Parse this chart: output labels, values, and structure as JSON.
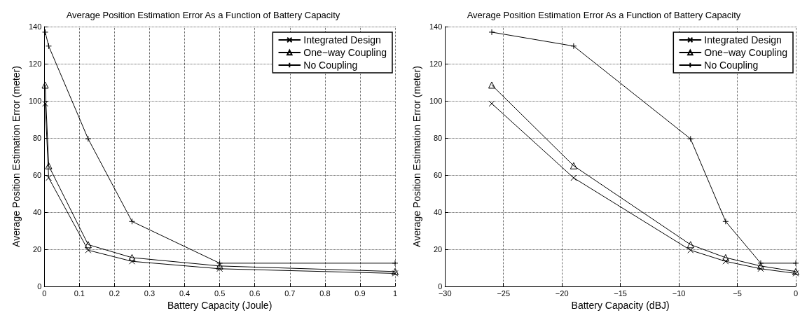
{
  "chart_data": [
    {
      "type": "line",
      "title": "Average Position Estimation Error As a Function of Battery Capacity",
      "xlabel": "Battery Capacity (Joule)",
      "ylabel": "Average Position Estimation Error (meter)",
      "xlim": [
        0,
        1
      ],
      "xticks": [
        0,
        0.1,
        0.2,
        0.3,
        0.4,
        0.5,
        0.6,
        0.7,
        0.8,
        0.9,
        1
      ],
      "ylim": [
        0,
        140
      ],
      "yticks": [
        0,
        20,
        40,
        60,
        80,
        100,
        120,
        140
      ],
      "grid": true,
      "legend": "top right",
      "line_style": "solid",
      "series": [
        {
          "name": "Integrated Design",
          "color": "#000000",
          "marker": "x",
          "x": [
            0.0025,
            0.0125,
            0.125,
            0.25,
            0.5,
            1
          ],
          "values": [
            98.5,
            58.5,
            19.5,
            13.5,
            9.5,
            7
          ]
        },
        {
          "name": "One−way Coupling",
          "color": "#000000",
          "marker": "triangle",
          "x": [
            0.0025,
            0.0125,
            0.125,
            0.25,
            0.5,
            1
          ],
          "values": [
            108.5,
            65,
            22.5,
            15.5,
            11,
            8
          ]
        },
        {
          "name": "No Coupling",
          "color": "#000000",
          "marker": "cross",
          "x": [
            0.0025,
            0.0125,
            0.125,
            0.25,
            0.5,
            1
          ],
          "values": [
            137,
            129.5,
            79.5,
            35,
            12.5,
            12.5
          ]
        }
      ]
    },
    {
      "type": "line",
      "title": "Average Position Estimation Error As a Function of Battery Capacity",
      "xlabel": "Battery Capacity (dBJ)",
      "ylabel": "Average Position Estimation Error (meter)",
      "xlim": [
        -30,
        0
      ],
      "xticks": [
        {
          "value": -30,
          "label": "−30"
        },
        {
          "value": -25,
          "label": "−25"
        },
        {
          "value": -20,
          "label": "−20"
        },
        {
          "value": -15,
          "label": "−15"
        },
        {
          "value": -10,
          "label": "−10"
        },
        {
          "value": -5,
          "label": "−5"
        },
        0
      ],
      "ylim": [
        0,
        140
      ],
      "yticks": [
        0,
        20,
        40,
        60,
        80,
        100,
        120,
        140
      ],
      "grid": true,
      "legend": "top right",
      "line_style": "solid",
      "series": [
        {
          "name": "Integrated Design",
          "color": "#000000",
          "marker": "x",
          "x": [
            -26,
            -19,
            -9,
            -6,
            -3,
            0
          ],
          "values": [
            98.5,
            58.5,
            19.5,
            13.5,
            9.5,
            7
          ]
        },
        {
          "name": "One−way Coupling",
          "color": "#000000",
          "marker": "triangle",
          "x": [
            -26,
            -19,
            -9,
            -6,
            -3,
            0
          ],
          "values": [
            108.5,
            65,
            22.5,
            15.5,
            11,
            8
          ]
        },
        {
          "name": "No Coupling",
          "color": "#000000",
          "marker": "cross",
          "x": [
            -26,
            -19,
            -9,
            -6,
            -3,
            0
          ],
          "values": [
            137,
            129.5,
            79.5,
            35,
            12.5,
            12.5
          ]
        }
      ]
    }
  ]
}
